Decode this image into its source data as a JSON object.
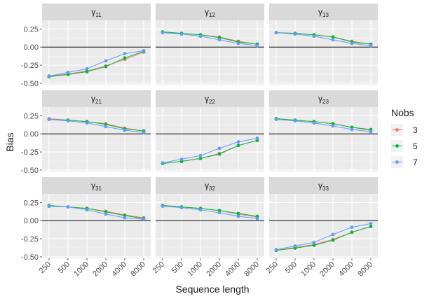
{
  "chart_data": {
    "type": "line",
    "title": "",
    "xlabel": "Sequence length",
    "ylabel": "Bias",
    "x": [
      "250",
      "500",
      "1000",
      "2000",
      "4000",
      "8000"
    ],
    "yticks": [
      -0.5,
      -0.25,
      0.0,
      0.25
    ],
    "ytick_labels": [
      "-0.50",
      "-0.25",
      "0.00",
      "0.25"
    ],
    "ylim": [
      -0.52,
      0.37
    ],
    "grid": true,
    "zero_line": true,
    "legend": {
      "title": "Nobs",
      "placement": "right"
    },
    "series_styles": [
      {
        "name": "3",
        "color": "#F8766D"
      },
      {
        "name": "5",
        "color": "#00BA38"
      },
      {
        "name": "7",
        "color": "#619CFF"
      }
    ],
    "panels": [
      {
        "label": "γ",
        "sub": "11",
        "series": [
          {
            "name": "3",
            "values": [
              -0.4,
              -0.37,
              -0.33,
              -0.26,
              -0.17,
              -0.07
            ]
          },
          {
            "name": "5",
            "values": [
              -0.41,
              -0.38,
              -0.34,
              -0.27,
              -0.15,
              -0.06
            ]
          },
          {
            "name": "7",
            "values": [
              -0.4,
              -0.35,
              -0.3,
              -0.19,
              -0.09,
              -0.05
            ]
          }
        ]
      },
      {
        "label": "γ",
        "sub": "12",
        "series": [
          {
            "name": "3",
            "values": [
              0.2,
              0.19,
              0.17,
              0.14,
              0.08,
              0.04
            ]
          },
          {
            "name": "5",
            "values": [
              0.21,
              0.19,
              0.17,
              0.13,
              0.07,
              0.04
            ]
          },
          {
            "name": "7",
            "values": [
              0.2,
              0.18,
              0.15,
              0.1,
              0.05,
              0.02
            ]
          }
        ]
      },
      {
        "label": "γ",
        "sub": "13",
        "series": [
          {
            "name": "3",
            "values": [
              0.2,
              0.19,
              0.17,
              0.14,
              0.08,
              0.04
            ]
          },
          {
            "name": "5",
            "values": [
              0.2,
              0.19,
              0.17,
              0.14,
              0.07,
              0.04
            ]
          },
          {
            "name": "7",
            "values": [
              0.2,
              0.18,
              0.15,
              0.1,
              0.05,
              0.02
            ]
          }
        ]
      },
      {
        "label": "γ",
        "sub": "21",
        "series": [
          {
            "name": "3",
            "values": [
              0.21,
              0.19,
              0.17,
              0.14,
              0.08,
              0.04
            ]
          },
          {
            "name": "5",
            "values": [
              0.2,
              0.19,
              0.17,
              0.13,
              0.07,
              0.04
            ]
          },
          {
            "name": "7",
            "values": [
              0.2,
              0.18,
              0.15,
              0.1,
              0.05,
              0.02
            ]
          }
        ]
      },
      {
        "label": "γ",
        "sub": "22",
        "series": [
          {
            "name": "3",
            "values": [
              -0.41,
              -0.38,
              -0.34,
              -0.27,
              -0.16,
              -0.09
            ]
          },
          {
            "name": "5",
            "values": [
              -0.41,
              -0.38,
              -0.34,
              -0.28,
              -0.16,
              -0.09
            ]
          },
          {
            "name": "7",
            "values": [
              -0.4,
              -0.35,
              -0.3,
              -0.2,
              -0.11,
              -0.06
            ]
          }
        ]
      },
      {
        "label": "γ",
        "sub": "23",
        "series": [
          {
            "name": "3",
            "values": [
              0.21,
              0.19,
              0.17,
              0.14,
              0.09,
              0.05
            ]
          },
          {
            "name": "5",
            "values": [
              0.21,
              0.19,
              0.17,
              0.14,
              0.09,
              0.06
            ]
          },
          {
            "name": "7",
            "values": [
              0.2,
              0.18,
              0.15,
              0.11,
              0.06,
              0.03
            ]
          }
        ]
      },
      {
        "label": "γ",
        "sub": "31",
        "series": [
          {
            "name": "3",
            "values": [
              0.2,
              0.19,
              0.17,
              0.13,
              0.08,
              0.04
            ]
          },
          {
            "name": "5",
            "values": [
              0.21,
              0.19,
              0.17,
              0.12,
              0.07,
              0.03
            ]
          },
          {
            "name": "7",
            "values": [
              0.2,
              0.19,
              0.15,
              0.09,
              0.04,
              0.02
            ]
          }
        ]
      },
      {
        "label": "γ",
        "sub": "32",
        "series": [
          {
            "name": "3",
            "values": [
              0.21,
              0.19,
              0.17,
              0.14,
              0.09,
              0.05
            ]
          },
          {
            "name": "5",
            "values": [
              0.21,
              0.19,
              0.17,
              0.14,
              0.1,
              0.06
            ]
          },
          {
            "name": "7",
            "values": [
              0.2,
              0.18,
              0.15,
              0.11,
              0.06,
              0.03
            ]
          }
        ]
      },
      {
        "label": "γ",
        "sub": "33",
        "series": [
          {
            "name": "3",
            "values": [
              -0.41,
              -0.37,
              -0.33,
              -0.26,
              -0.16,
              -0.08
            ]
          },
          {
            "name": "5",
            "values": [
              -0.41,
              -0.38,
              -0.34,
              -0.27,
              -0.16,
              -0.08
            ]
          },
          {
            "name": "7",
            "values": [
              -0.4,
              -0.35,
              -0.3,
              -0.19,
              -0.09,
              -0.04
            ]
          }
        ]
      }
    ]
  }
}
